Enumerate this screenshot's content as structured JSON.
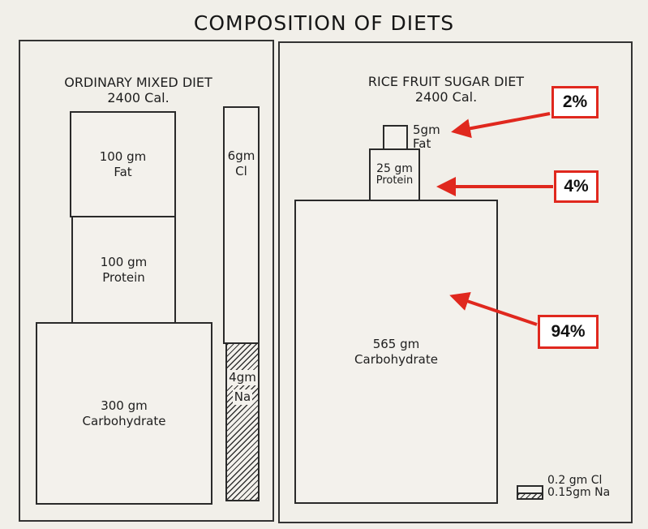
{
  "title": "COMPOSITION OF DIETS",
  "left_diet": {
    "name": "ORDINARY MIXED DIET",
    "calories": "2400 Cal.",
    "fat": {
      "amount": "100 gm",
      "label": "Fat"
    },
    "protein": {
      "amount": "100 gm",
      "label": "Protein"
    },
    "carbohydrate": {
      "amount": "300 gm",
      "label": "Carbohydrate"
    },
    "chloride": {
      "amount": "6gm",
      "label": "Cl"
    },
    "sodium": {
      "amount": "4gm",
      "label": "Na"
    }
  },
  "right_diet": {
    "name": "RICE FRUIT SUGAR DIET",
    "calories": "2400 Cal.",
    "fat": {
      "amount": "5gm",
      "label": "Fat"
    },
    "protein": {
      "amount": "25 gm",
      "label": "Protein"
    },
    "carbohydrate": {
      "amount": "565 gm",
      "label": "Carbohydrate"
    },
    "legend": {
      "chloride": "0.2 gm Cl",
      "sodium": "0.15gm Na"
    }
  },
  "callouts": {
    "fat_percent": "2%",
    "protein_percent": "4%",
    "carbohydrate_percent": "94%",
    "color": "#e0281e"
  }
}
